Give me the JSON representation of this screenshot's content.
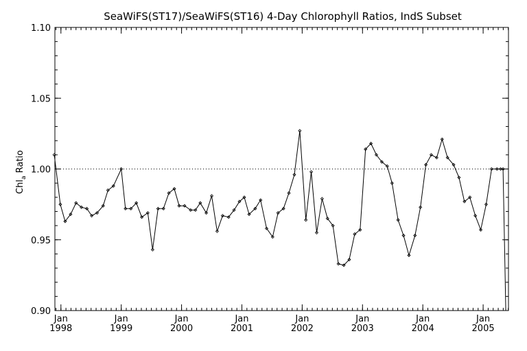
{
  "chart_data": {
    "type": "line",
    "title": "SeaWiFS(ST17)/SeaWiFS(ST16) 4-Day Chlorophyll Ratios, IndS Subset",
    "xlabel": "",
    "ylabel": "Chl_a Ratio",
    "ylabel_main": "Chl",
    "ylabel_sub": "a",
    "ylabel_tail": " Ratio",
    "xlim": [
      1997.9,
      2005.42
    ],
    "ylim": [
      0.9,
      1.1
    ],
    "y_ticks": [
      0.9,
      0.95,
      1.0,
      1.05,
      1.1
    ],
    "y_tick_labels": [
      "0.90",
      "0.95",
      "1.00",
      "1.05",
      "1.10"
    ],
    "x_major_ticks": [
      {
        "x": 1998,
        "label_top": "Jan",
        "label_bottom": "1998"
      },
      {
        "x": 1999,
        "label_top": "Jan",
        "label_bottom": "1999"
      },
      {
        "x": 2000,
        "label_top": "Jan",
        "label_bottom": "2000"
      },
      {
        "x": 2001,
        "label_top": "Jan",
        "label_bottom": "2001"
      },
      {
        "x": 2002,
        "label_top": "Jan",
        "label_bottom": "2002"
      },
      {
        "x": 2003,
        "label_top": "Jan",
        "label_bottom": "2003"
      },
      {
        "x": 2004,
        "label_top": "Jan",
        "label_bottom": "2004"
      },
      {
        "x": 2005,
        "label_top": "Jan",
        "label_bottom": "2005"
      }
    ],
    "reference_line": 1.0,
    "grid": false,
    "series": [
      {
        "x": [
          1997.89,
          1997.99,
          1998.07,
          1998.16,
          1998.25,
          1998.34,
          1998.43,
          1998.51,
          1998.6,
          1998.7,
          1998.78,
          1998.87,
          1999.0,
          1999.07,
          1999.16,
          1999.25,
          1999.34,
          1999.44,
          1999.52,
          1999.61,
          1999.7,
          1999.79,
          1999.88,
          1999.96,
          2000.05,
          2000.15,
          2000.23,
          2000.31,
          2000.41,
          2000.5,
          2000.59,
          2000.68,
          2000.78,
          2000.87,
          2000.96,
          2001.04,
          2001.12,
          2001.22,
          2001.31,
          2001.41,
          2001.51,
          2001.6,
          2001.69,
          2001.78,
          2001.87,
          2001.96,
          2002.06,
          2002.15,
          2002.24,
          2002.33,
          2002.42,
          2002.51,
          2002.6,
          2002.69,
          2002.78,
          2002.87,
          2002.96,
          2003.05,
          2003.14,
          2003.23,
          2003.32,
          2003.41,
          2003.49,
          2003.59,
          2003.68,
          2003.77,
          2003.87,
          2003.96,
          2004.05,
          2004.14,
          2004.23,
          2004.32,
          2004.41,
          2004.51,
          2004.6,
          2004.69,
          2004.78,
          2004.87,
          2004.96,
          2005.05,
          2005.14,
          2005.23,
          2005.29,
          2005.33
        ],
        "values": [
          1.01,
          0.975,
          0.963,
          0.968,
          0.976,
          0.973,
          0.972,
          0.967,
          0.969,
          0.974,
          0.985,
          0.988,
          1.0,
          0.972,
          0.972,
          0.976,
          0.966,
          0.969,
          0.943,
          0.972,
          0.972,
          0.983,
          0.986,
          0.974,
          0.974,
          0.971,
          0.971,
          0.976,
          0.969,
          0.981,
          0.956,
          0.967,
          0.966,
          0.971,
          0.977,
          0.98,
          0.968,
          0.972,
          0.978,
          0.958,
          0.952,
          0.969,
          0.972,
          0.983,
          0.996,
          1.027,
          0.964,
          0.998,
          0.955,
          0.979,
          0.965,
          0.96,
          0.933,
          0.932,
          0.936,
          0.954,
          0.957,
          1.014,
          1.018,
          1.01,
          1.005,
          1.002,
          0.99,
          0.964,
          0.953,
          0.939,
          0.953,
          0.973,
          1.003,
          1.01,
          1.008,
          1.021,
          1.008,
          1.003,
          0.994,
          0.977,
          0.98,
          0.967,
          0.957,
          0.975,
          1.0,
          1.0,
          1.0,
          1.0
        ]
      }
    ]
  }
}
